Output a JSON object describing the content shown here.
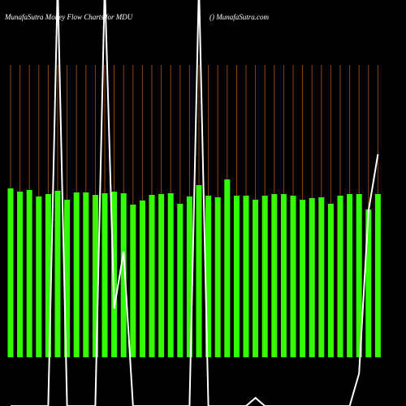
{
  "chart_data": {
    "type": "bar",
    "title": "MunafaSutra  Money Flow  Charts for MDU",
    "subtitle": "() MunafaSutra.com",
    "color": "#33ff00",
    "grid_color": "#8b4513",
    "line_color": "#ffffff",
    "values": [
      208,
      204,
      206,
      198,
      201,
      205,
      194,
      203,
      203,
      200,
      202,
      204,
      202,
      188,
      193,
      200,
      201,
      202,
      189,
      198,
      212,
      199,
      197,
      219,
      199,
      199,
      194,
      199,
      201,
      201,
      199,
      194,
      196,
      197,
      189,
      199,
      201,
      201,
      182,
      201
    ],
    "line_values": [
      -60,
      -60,
      -60,
      -60,
      -60,
      460,
      -60,
      -60,
      -60,
      -60,
      460,
      60,
      130,
      -60,
      -60,
      -60,
      -60,
      -60,
      -60,
      -60,
      460,
      -60,
      -60,
      -60,
      -60,
      -60,
      -50,
      -60,
      -60,
      -60,
      -60,
      -60,
      -60,
      -60,
      -60,
      -60,
      -60,
      -20,
      180,
      250
    ]
  }
}
